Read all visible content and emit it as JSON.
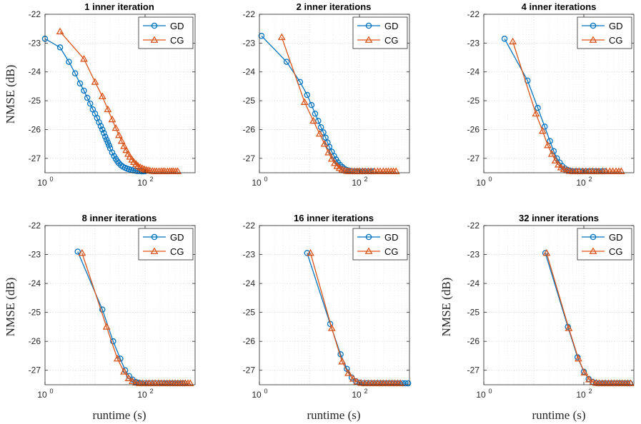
{
  "colors": {
    "gd": "#0072BD",
    "cg": "#D95319",
    "grid": "#d9d9d9",
    "axes": "#262626"
  },
  "chart_data": [
    {
      "type": "line",
      "title": "1 inner iteration",
      "xlabel": "",
      "ylabel": "NMSE (dB)",
      "xscale": "log",
      "xlim": [
        1,
        1000
      ],
      "ylim": [
        -27.5,
        -22
      ],
      "xticks": [
        {
          "base": "10",
          "exp": "0",
          "value": 1
        },
        {
          "base": "10",
          "exp": "2",
          "value": 100
        }
      ],
      "yticks": [
        -22,
        -23,
        -24,
        -25,
        -26,
        -27
      ],
      "legend": [
        "GD",
        "CG"
      ],
      "legend_position": "top-right",
      "grid": true,
      "series": [
        {
          "name": "GD",
          "marker": "circle",
          "x": [
            1,
            2,
            3,
            4,
            5,
            6,
            7,
            8,
            9,
            10,
            11,
            12,
            13,
            14,
            15,
            16,
            17,
            18,
            19,
            20,
            22,
            24,
            26,
            28,
            30,
            33,
            36,
            40,
            44,
            48,
            53,
            58,
            64,
            70,
            77,
            85,
            93,
            100
          ],
          "y": [
            -22.85,
            -23.15,
            -23.65,
            -24.05,
            -24.4,
            -24.65,
            -24.9,
            -25.1,
            -25.3,
            -25.45,
            -25.6,
            -25.75,
            -25.88,
            -26.0,
            -26.12,
            -26.25,
            -26.35,
            -26.45,
            -26.55,
            -26.65,
            -26.8,
            -26.92,
            -27.02,
            -27.1,
            -27.17,
            -27.24,
            -27.29,
            -27.33,
            -27.36,
            -27.38,
            -27.4,
            -27.42,
            -27.43,
            -27.44,
            -27.44,
            -27.45,
            -27.45,
            -27.45
          ]
        },
        {
          "name": "CG",
          "marker": "triangle",
          "x": [
            2,
            6,
            10,
            14,
            18,
            22,
            26,
            30,
            34,
            38,
            42,
            46,
            50,
            55,
            60,
            66,
            72,
            80,
            88,
            96,
            105,
            115,
            125,
            140,
            155,
            170,
            190,
            210,
            230,
            250,
            280,
            310,
            340,
            370,
            410,
            450
          ],
          "y": [
            -22.6,
            -23.55,
            -24.35,
            -24.85,
            -25.3,
            -25.65,
            -25.95,
            -26.2,
            -26.4,
            -26.58,
            -26.72,
            -26.85,
            -26.95,
            -27.05,
            -27.13,
            -27.2,
            -27.26,
            -27.31,
            -27.35,
            -27.38,
            -27.4,
            -27.42,
            -27.43,
            -27.44,
            -27.45,
            -27.45,
            -27.45,
            -27.45,
            -27.45,
            -27.45,
            -27.45,
            -27.45,
            -27.45,
            -27.45,
            -27.45,
            -27.45
          ]
        }
      ]
    },
    {
      "type": "line",
      "title": "2 inner iterations",
      "xlabel": "",
      "ylabel": "",
      "xscale": "log",
      "xlim": [
        1,
        1000
      ],
      "ylim": [
        -27.5,
        -22
      ],
      "xticks": [
        {
          "base": "10",
          "exp": "0",
          "value": 1
        },
        {
          "base": "10",
          "exp": "2",
          "value": 100
        }
      ],
      "yticks": [
        -22,
        -23,
        -24,
        -25,
        -26,
        -27
      ],
      "legend": [
        "GD",
        "CG"
      ],
      "legend_position": "top-right",
      "grid": true,
      "series": [
        {
          "name": "GD",
          "marker": "circle",
          "x": [
            1.1,
            3.5,
            6.5,
            9,
            11,
            13,
            15,
            17,
            19,
            21,
            23,
            25,
            28,
            31,
            34,
            37,
            41,
            45,
            50,
            55,
            60,
            66,
            72,
            80,
            90,
            100,
            115,
            130,
            150,
            170,
            190
          ],
          "y": [
            -22.75,
            -23.65,
            -24.35,
            -24.8,
            -25.15,
            -25.45,
            -25.7,
            -25.92,
            -26.1,
            -26.28,
            -26.45,
            -26.6,
            -26.77,
            -26.92,
            -27.04,
            -27.14,
            -27.23,
            -27.3,
            -27.36,
            -27.4,
            -27.42,
            -27.44,
            -27.45,
            -27.45,
            -27.45,
            -27.45,
            -27.45,
            -27.45,
            -27.45,
            -27.45,
            -27.45
          ]
        },
        {
          "name": "CG",
          "marker": "triangle",
          "x": [
            2.8,
            8,
            12,
            16,
            20,
            24,
            28,
            32,
            36,
            40,
            45,
            50,
            56,
            62,
            70,
            80,
            90,
            100,
            115,
            130,
            150,
            170,
            200,
            230,
            260,
            300,
            340,
            380,
            430,
            480,
            540
          ],
          "y": [
            -22.8,
            -25.05,
            -25.7,
            -26.15,
            -26.5,
            -26.8,
            -27.02,
            -27.17,
            -27.27,
            -27.34,
            -27.39,
            -27.42,
            -27.44,
            -27.45,
            -27.45,
            -27.45,
            -27.45,
            -27.45,
            -27.45,
            -27.45,
            -27.45,
            -27.45,
            -27.45,
            -27.45,
            -27.45,
            -27.45,
            -27.45,
            -27.45,
            -27.45,
            -27.45,
            -27.45
          ]
        }
      ]
    },
    {
      "type": "line",
      "title": "4 inner iterations",
      "xlabel": "",
      "ylabel": "",
      "xscale": "log",
      "xlim": [
        1,
        1000
      ],
      "ylim": [
        -27.5,
        -22
      ],
      "xticks": [
        {
          "base": "10",
          "exp": "0",
          "value": 1
        },
        {
          "base": "10",
          "exp": "2",
          "value": 100
        }
      ],
      "yticks": [
        -22,
        -23,
        -24,
        -25,
        -26,
        -27
      ],
      "legend": [
        "GD",
        "CG"
      ],
      "legend_position": "top-right",
      "grid": true,
      "series": [
        {
          "name": "GD",
          "marker": "circle",
          "x": [
            2.6,
            7.5,
            12,
            16.5,
            21,
            25,
            29,
            33,
            37,
            42,
            47,
            53,
            60,
            68,
            76,
            85,
            95,
            110,
            125,
            140,
            160,
            180,
            200,
            230,
            260
          ],
          "y": [
            -22.85,
            -24.3,
            -25.25,
            -25.9,
            -26.4,
            -26.75,
            -27.0,
            -27.15,
            -27.27,
            -27.35,
            -27.4,
            -27.43,
            -27.45,
            -27.45,
            -27.45,
            -27.45,
            -27.45,
            -27.45,
            -27.45,
            -27.45,
            -27.45,
            -27.45,
            -27.45,
            -27.45,
            -27.45
          ]
        },
        {
          "name": "CG",
          "marker": "triangle",
          "x": [
            3.8,
            11,
            15,
            19,
            23,
            27,
            31,
            35,
            40,
            46,
            52,
            60,
            70,
            80,
            95,
            110,
            130,
            150,
            175,
            200,
            240,
            280,
            330,
            380,
            440,
            500,
            560
          ],
          "y": [
            -22.95,
            -25.45,
            -26.05,
            -26.55,
            -26.85,
            -27.08,
            -27.22,
            -27.32,
            -27.38,
            -27.42,
            -27.44,
            -27.45,
            -27.45,
            -27.45,
            -27.45,
            -27.45,
            -27.45,
            -27.45,
            -27.45,
            -27.45,
            -27.45,
            -27.45,
            -27.45,
            -27.45,
            -27.45,
            -27.45,
            -27.45
          ]
        }
      ]
    },
    {
      "type": "line",
      "title": "8 inner iterations",
      "xlabel": "runtime (s)",
      "ylabel": "NMSE (dB)",
      "xscale": "log",
      "xlim": [
        1,
        1000
      ],
      "ylim": [
        -27.5,
        -22
      ],
      "xticks": [
        {
          "base": "10",
          "exp": "0",
          "value": 1
        },
        {
          "base": "10",
          "exp": "2",
          "value": 100
        }
      ],
      "yticks": [
        -22,
        -23,
        -24,
        -25,
        -26,
        -27
      ],
      "legend": [
        "GD",
        "CG"
      ],
      "legend_position": "top-right",
      "grid": true,
      "series": [
        {
          "name": "GD",
          "marker": "circle",
          "x": [
            4.5,
            14,
            23,
            32,
            40,
            48,
            56,
            65,
            75,
            85,
            100,
            115,
            130,
            150,
            170,
            195,
            220,
            250,
            280,
            320,
            360,
            400,
            450,
            500,
            560,
            620
          ],
          "y": [
            -22.9,
            -24.9,
            -26.0,
            -26.6,
            -27.0,
            -27.2,
            -27.32,
            -27.4,
            -27.43,
            -27.45,
            -27.45,
            -27.45,
            -27.45,
            -27.45,
            -27.45,
            -27.45,
            -27.45,
            -27.45,
            -27.45,
            -27.45,
            -27.45,
            -27.45,
            -27.45,
            -27.45,
            -27.45,
            -27.45
          ]
        },
        {
          "name": "CG",
          "marker": "triangle",
          "x": [
            5.5,
            17,
            28,
            38,
            47,
            56,
            66,
            78,
            90,
            105,
            120,
            140,
            160,
            185,
            210,
            240,
            275,
            310,
            350,
            400,
            450,
            510,
            570,
            640,
            720,
            800
          ],
          "y": [
            -22.95,
            -25.5,
            -26.6,
            -27.05,
            -27.28,
            -27.38,
            -27.43,
            -27.45,
            -27.45,
            -27.45,
            -27.45,
            -27.45,
            -27.45,
            -27.45,
            -27.45,
            -27.45,
            -27.45,
            -27.45,
            -27.45,
            -27.45,
            -27.45,
            -27.45,
            -27.45,
            -27.45,
            -27.45,
            -27.45
          ]
        }
      ]
    },
    {
      "type": "line",
      "title": "16 inner iterations",
      "xlabel": "runtime (s)",
      "ylabel": "",
      "xscale": "log",
      "xlim": [
        1,
        1000
      ],
      "ylim": [
        -27.5,
        -22
      ],
      "xticks": [
        {
          "base": "10",
          "exp": "0",
          "value": 1
        },
        {
          "base": "10",
          "exp": "2",
          "value": 100
        }
      ],
      "yticks": [
        -22,
        -23,
        -24,
        -25,
        -26,
        -27
      ],
      "legend": [
        "GD",
        "CG"
      ],
      "legend_position": "top-right",
      "grid": true,
      "series": [
        {
          "name": "GD",
          "marker": "circle",
          "x": [
            9,
            26,
            42,
            56,
            70,
            85,
            100,
            120,
            140,
            165,
            190,
            220,
            250,
            290,
            330,
            380,
            430,
            490,
            560,
            640,
            730,
            830,
            940
          ],
          "y": [
            -22.95,
            -25.4,
            -26.45,
            -26.95,
            -27.25,
            -27.38,
            -27.43,
            -27.45,
            -27.45,
            -27.45,
            -27.45,
            -27.45,
            -27.45,
            -27.45,
            -27.45,
            -27.45,
            -27.45,
            -27.45,
            -27.45,
            -27.45,
            -27.45,
            -27.45,
            -27.45
          ]
        },
        {
          "name": "CG",
          "marker": "triangle",
          "x": [
            10.5,
            28,
            45,
            60,
            75,
            90,
            108,
            128,
            150,
            175,
            200,
            230,
            265,
            300,
            345,
            395,
            450,
            510,
            580,
            660
          ],
          "y": [
            -22.95,
            -25.55,
            -26.7,
            -27.1,
            -27.3,
            -27.4,
            -27.44,
            -27.45,
            -27.45,
            -27.45,
            -27.45,
            -27.45,
            -27.45,
            -27.45,
            -27.45,
            -27.45,
            -27.45,
            -27.45,
            -27.45,
            -27.45
          ]
        }
      ]
    },
    {
      "type": "line",
      "title": "32 inner iterations",
      "xlabel": "runtime (s)",
      "ylabel": "NMSE (dB)",
      "xscale": "log",
      "xlim": [
        1,
        1000
      ],
      "ylim": [
        -27.5,
        -22
      ],
      "xticks": [
        {
          "base": "10",
          "exp": "0",
          "value": 1
        },
        {
          "base": "10",
          "exp": "2",
          "value": 100
        }
      ],
      "yticks": [
        -22,
        -23,
        -24,
        -25,
        -26,
        -27
      ],
      "legend": [
        "GD",
        "CG"
      ],
      "legend_position": "top-right",
      "grid": true,
      "series": [
        {
          "name": "GD",
          "marker": "circle",
          "x": [
            17,
            48,
            75,
            100,
            125,
            150,
            175,
            200,
            230,
            260,
            300,
            340,
            390,
            440,
            500,
            570,
            650,
            740,
            840
          ],
          "y": [
            -22.95,
            -25.5,
            -26.55,
            -27.05,
            -27.3,
            -27.4,
            -27.44,
            -27.45,
            -27.45,
            -27.45,
            -27.45,
            -27.45,
            -27.45,
            -27.45,
            -27.45,
            -27.45,
            -27.45,
            -27.45,
            -27.45
          ]
        },
        {
          "name": "CG",
          "marker": "triangle",
          "x": [
            18,
            50,
            78,
            103,
            128,
            153,
            178,
            205,
            235,
            270,
            310,
            355,
            405,
            460,
            520,
            590,
            670,
            760,
            860
          ],
          "y": [
            -22.95,
            -25.55,
            -26.6,
            -27.08,
            -27.32,
            -27.41,
            -27.44,
            -27.45,
            -27.45,
            -27.45,
            -27.45,
            -27.45,
            -27.45,
            -27.45,
            -27.45,
            -27.45,
            -27.45,
            -27.45,
            -27.45
          ]
        }
      ]
    }
  ]
}
